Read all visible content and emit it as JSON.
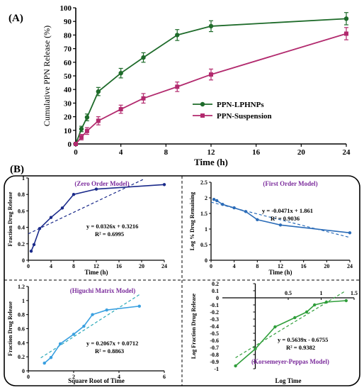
{
  "panel_labels": {
    "a": "(A)",
    "b": "(B)"
  },
  "chart_data": [
    {
      "id": "release",
      "type": "line",
      "title": "",
      "xlabel": "Time (h)",
      "ylabel": "Cumulative PPN Release (%)",
      "xlim": [
        0,
        24
      ],
      "ylim": [
        0,
        100
      ],
      "x_ticks": [
        0,
        4,
        8,
        12,
        16,
        20,
        24
      ],
      "y_ticks": [
        0,
        10,
        20,
        30,
        40,
        50,
        60,
        70,
        80,
        90,
        100
      ],
      "grid": false,
      "legend_position": "right",
      "series": [
        {
          "name": "PPN-LPHNPs",
          "color": "#1e6b2a",
          "marker": "circle",
          "x": [
            0,
            0.5,
            1,
            2,
            4,
            6,
            9,
            12,
            24
          ],
          "y": [
            0,
            11,
            19.5,
            38.5,
            52,
            63.5,
            80,
            86.5,
            92
          ],
          "err": [
            0,
            2,
            2.5,
            3,
            3.5,
            3.5,
            4,
            4,
            4.5
          ]
        },
        {
          "name": "PPN-Suspension",
          "color": "#b22a6e",
          "marker": "square",
          "x": [
            0,
            0.5,
            1,
            2,
            4,
            6,
            9,
            12,
            24
          ],
          "y": [
            0,
            5,
            9.5,
            17,
            25.5,
            33.5,
            42,
            51,
            81
          ],
          "err": [
            0,
            2,
            2.5,
            3,
            3,
            3.5,
            3.5,
            4,
            4.5
          ]
        }
      ]
    },
    {
      "id": "zero",
      "type": "line",
      "title": "(Zero Order Model)",
      "xlabel": "Time (h)",
      "ylabel": "Fraction Drug Release",
      "xlim": [
        0,
        24
      ],
      "ylim": [
        0,
        1
      ],
      "x_ticks": [
        0,
        4,
        8,
        12,
        16,
        20,
        24
      ],
      "y_ticks": [
        0,
        0.2,
        0.4,
        0.6,
        0.8,
        1
      ],
      "equation": "y = 0.0326x + 0.3216",
      "r2": "R² = 0.6995",
      "x": [
        0.5,
        1,
        2,
        4,
        6,
        8,
        12,
        24
      ],
      "y": [
        0.11,
        0.19,
        0.385,
        0.52,
        0.635,
        0.8,
        0.865,
        0.92
      ],
      "trend": {
        "slope": 0.0326,
        "intercept": 0.3216,
        "x_range": [
          0,
          20.5
        ]
      }
    },
    {
      "id": "first",
      "type": "line",
      "title": "(First Order Model)",
      "xlabel": "Time (h)",
      "ylabel": "Log % Drug Remaining",
      "xlim": [
        0,
        24
      ],
      "ylim": [
        0,
        2.5
      ],
      "x_ticks": [
        0,
        4,
        8,
        12,
        16,
        20,
        24
      ],
      "y_ticks": [
        0,
        0.5,
        1,
        1.5,
        2,
        2.5
      ],
      "equation": "y = -0.0471x + 1.861",
      "r2": "R² = 0.9036",
      "x": [
        0.5,
        1,
        2,
        4,
        6,
        8,
        12,
        24
      ],
      "y": [
        1.95,
        1.91,
        1.79,
        1.68,
        1.56,
        1.3,
        1.13,
        0.88
      ],
      "trend": {
        "slope": -0.0471,
        "intercept": 1.861,
        "x_range": [
          0,
          24
        ]
      }
    },
    {
      "id": "higuchi",
      "type": "line",
      "title": "(Higuchi Matrix Model)",
      "xlabel": "Square Root of Time",
      "ylabel": "Fraction Drug Release",
      "xlim": [
        0,
        6
      ],
      "ylim": [
        0,
        1.2
      ],
      "x_ticks": [
        0,
        2,
        4,
        6
      ],
      "y_ticks": [
        0,
        0.2,
        0.4,
        0.6,
        0.8,
        1,
        1.2
      ],
      "equation": "y = 0.2067x + 0.0712",
      "r2": "R² = 0.8863",
      "x": [
        0.71,
        1,
        1.41,
        2,
        2.45,
        2.83,
        3.46,
        4.9
      ],
      "y": [
        0.11,
        0.19,
        0.385,
        0.52,
        0.635,
        0.8,
        0.865,
        0.92
      ],
      "trend": {
        "slope": 0.2067,
        "intercept": 0.0712,
        "x_range": [
          0.55,
          4.9
        ]
      }
    },
    {
      "id": "korsmeyer",
      "type": "line",
      "title": "(Korsemeyer-Peppas Model)",
      "xlabel": "Log Time",
      "ylabel": "Log Fraction Drug Release",
      "xlim": [
        -0.5,
        1.5
      ],
      "ylim": [
        -1,
        0.2
      ],
      "x_ticks": [
        0.5,
        1,
        1.5
      ],
      "x_tick_labels": [
        "0.5",
        "1",
        "1.5"
      ],
      "y_ticks": [
        -1,
        -0.9,
        -0.8,
        -0.7,
        -0.6,
        -0.5,
        -0.4,
        -0.3,
        -0.2,
        -0.1,
        0,
        0.1,
        0.2
      ],
      "y_tick_labels": [
        "-1",
        "-0.9",
        "-0.8",
        "-0.7",
        "-0.6",
        "-0.5",
        "-0.4",
        "-0.3",
        "-0.2",
        "-0.1",
        "0",
        "0.1",
        "0.2"
      ],
      "equation": "y = 0.5639x - 0.6755",
      "r2": "R² = 0.9382",
      "x": [
        -0.3,
        0,
        0.3,
        0.6,
        0.78,
        0.9,
        1.08,
        1.38
      ],
      "y": [
        -0.96,
        -0.72,
        -0.41,
        -0.28,
        -0.2,
        -0.1,
        -0.06,
        -0.04
      ],
      "trend": {
        "slope": 0.5639,
        "intercept": -0.6755,
        "x_range": [
          -0.3,
          1.35
        ]
      }
    }
  ]
}
